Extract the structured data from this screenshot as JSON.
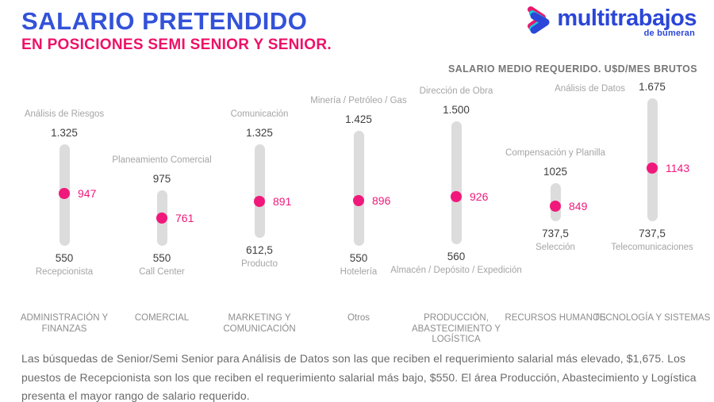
{
  "header": {
    "title": "SALARIO PRETENDIDO",
    "subtitle": "EN POSICIONES SEMI SENIOR Y SENIOR.",
    "logo": {
      "brand": "multitrabajos",
      "sub_brand": "de bumeran"
    },
    "axis_note": "SALARIO MEDIO REQUERIDO. U$D/MES BRUTOS"
  },
  "chart_data": {
    "type": "range-dot",
    "title": "SALARIO PRETENDIDO EN POSICIONES SEMI SENIOR Y SENIOR",
    "ylabel": "SALARIO MEDIO REQUERIDO. U$D/MES BRUTOS",
    "ylim": [
      550,
      1675
    ],
    "grid": false,
    "legend": "none",
    "categories": [
      "ADMINISTRACIÓN Y FINANZAS",
      "COMERCIAL",
      "MARKETING Y COMUNICACIÓN",
      "Otros",
      "PRODUCCIÓN, ABASTECIMIENTO Y LOGÍSTICA",
      "RECURSOS HUMANOS",
      "TECNOLOGÍA Y SISTEMAS"
    ],
    "series": [
      {
        "category": "ADMINISTRACIÓN Y FINANZAS",
        "min": 550,
        "max": 1325,
        "avg": 947,
        "min_label": "550",
        "max_label": "1.325",
        "avg_label": "947",
        "top_job": "Análisis de Riesgos",
        "bottom_job": "Recepcionista",
        "top_job_position": "above"
      },
      {
        "category": "COMERCIAL",
        "min": 550,
        "max": 975,
        "avg": 761,
        "min_label": "550",
        "max_label": "975",
        "avg_label": "761",
        "top_job": "Planeamiento Comercial",
        "bottom_job": "Call Center",
        "top_job_position": "above"
      },
      {
        "category": "MARKETING Y COMUNICACIÓN",
        "min": 612.5,
        "max": 1325,
        "avg": 891,
        "min_label": "612,5",
        "max_label": "1.325",
        "avg_label": "891",
        "top_job": "Comunicación",
        "bottom_job": "Producto",
        "top_job_position": "above"
      },
      {
        "category": "Otros",
        "min": 550,
        "max": 1425,
        "avg": 896,
        "min_label": "550",
        "max_label": "1.425",
        "avg_label": "896",
        "top_job": "Minería / Petróleo / Gas",
        "bottom_job": "Hotelería",
        "top_job_position": "above"
      },
      {
        "category": "PRODUCCIÓN, ABASTECIMIENTO Y LOGÍSTICA",
        "min": 560,
        "max": 1500,
        "avg": 926,
        "min_label": "560",
        "max_label": "1.500",
        "avg_label": "926",
        "top_job": "Dirección de Obra",
        "bottom_job": "Almacén / Depósito / Expedición",
        "top_job_position": "above"
      },
      {
        "category": "RECURSOS HUMANOS",
        "min": 737.5,
        "max": 1025,
        "avg": 849,
        "min_label": "737,5",
        "max_label": "1025",
        "avg_label": "849",
        "top_job": "Compensación y Planilla",
        "bottom_job": "Selección",
        "top_job_position": "above"
      },
      {
        "category": "TECNOLOGÍA Y SISTEMAS",
        "min": 737.5,
        "max": 1675,
        "avg": 1143,
        "min_label": "737,5",
        "max_label": "1.675",
        "avg_label": "1143",
        "top_job": "Análisis de Datos",
        "bottom_job": "Telecomunicaciones",
        "top_job_position": "side"
      }
    ]
  },
  "footer": {
    "note": "Las búsquedas de Senior/Semi Senior para Análisis de Datos son las que reciben el requerimiento salarial más elevado, $1,675. Los puestos de Recepcionista son los que reciben el requerimiento salarial más bajo, $550.  El área Producción, Abastecimiento y Logística presenta el mayor rango de salario requerido."
  },
  "colors": {
    "title_blue": "#3352d9",
    "logo_blue": "#2b46d8",
    "subtitle_pink": "#ee1168",
    "accent_pink": "#f0197b",
    "logo_teal": "#1ac8d8",
    "bar_gray": "#dcdcdc",
    "value_dark": "#3e3e3e",
    "label_gray": "#a5a5a5",
    "category_gray": "#8e8e8e",
    "note_gray": "#767676",
    "footer_gray": "#6a6a6a"
  }
}
